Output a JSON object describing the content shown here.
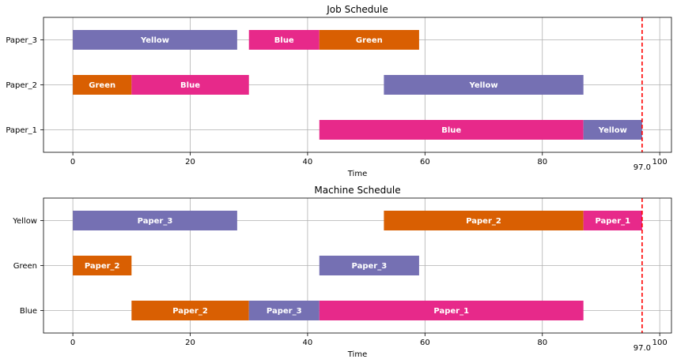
{
  "chart_data": [
    {
      "type": "gantt",
      "title": "Job Schedule",
      "xlabel": "Time",
      "xlim": [
        -5,
        102
      ],
      "xticks": [
        0,
        20,
        40,
        60,
        80,
        100
      ],
      "categories": [
        "Paper_1",
        "Paper_2",
        "Paper_3"
      ],
      "grid": true,
      "marker": {
        "x": 97.0,
        "label": "97.0",
        "color": "#ff0000",
        "style": "dashed"
      },
      "bars": [
        {
          "row": "Paper_3",
          "start": 0,
          "end": 28,
          "label": "Yellow",
          "color": "#7570b3"
        },
        {
          "row": "Paper_3",
          "start": 30,
          "end": 42,
          "label": "Blue",
          "color": "#e7298a"
        },
        {
          "row": "Paper_3",
          "start": 42,
          "end": 59,
          "label": "Green",
          "color": "#d95f02"
        },
        {
          "row": "Paper_2",
          "start": 0,
          "end": 10,
          "label": "Green",
          "color": "#d95f02"
        },
        {
          "row": "Paper_2",
          "start": 10,
          "end": 30,
          "label": "Blue",
          "color": "#e7298a"
        },
        {
          "row": "Paper_2",
          "start": 53,
          "end": 87,
          "label": "Yellow",
          "color": "#7570b3"
        },
        {
          "row": "Paper_1",
          "start": 42,
          "end": 87,
          "label": "Blue",
          "color": "#e7298a"
        },
        {
          "row": "Paper_1",
          "start": 87,
          "end": 97,
          "label": "Yellow",
          "color": "#7570b3"
        }
      ]
    },
    {
      "type": "gantt",
      "title": "Machine Schedule",
      "xlabel": "Time",
      "xlim": [
        -5,
        102
      ],
      "xticks": [
        0,
        20,
        40,
        60,
        80,
        100
      ],
      "categories": [
        "Blue",
        "Green",
        "Yellow"
      ],
      "grid": true,
      "marker": {
        "x": 97.0,
        "label": "97.0",
        "color": "#ff0000",
        "style": "dashed"
      },
      "bars": [
        {
          "row": "Yellow",
          "start": 0,
          "end": 28,
          "label": "Paper_3",
          "color": "#7570b3"
        },
        {
          "row": "Yellow",
          "start": 53,
          "end": 87,
          "label": "Paper_2",
          "color": "#d95f02"
        },
        {
          "row": "Yellow",
          "start": 87,
          "end": 97,
          "label": "Paper_1",
          "color": "#e7298a"
        },
        {
          "row": "Green",
          "start": 0,
          "end": 10,
          "label": "Paper_2",
          "color": "#d95f02"
        },
        {
          "row": "Green",
          "start": 42,
          "end": 59,
          "label": "Paper_3",
          "color": "#7570b3"
        },
        {
          "row": "Blue",
          "start": 10,
          "end": 30,
          "label": "Paper_2",
          "color": "#d95f02"
        },
        {
          "row": "Blue",
          "start": 30,
          "end": 42,
          "label": "Paper_3",
          "color": "#7570b3"
        },
        {
          "row": "Blue",
          "start": 42,
          "end": 87,
          "label": "Paper_1",
          "color": "#e7298a"
        }
      ]
    }
  ]
}
